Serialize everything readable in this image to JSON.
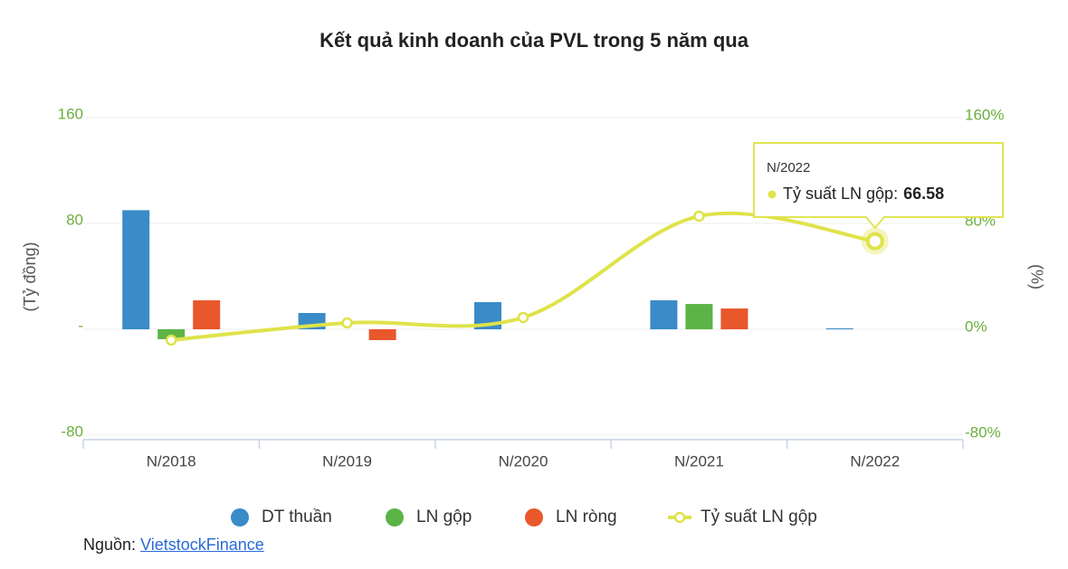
{
  "chart_data": {
    "type": "bar+line",
    "title": "Kết quả kinh doanh của PVL trong 5 năm qua",
    "y_label": "(Tỷ đồng)",
    "y2_label": "(%)",
    "categories": [
      "N/2018",
      "N/2019",
      "N/2020",
      "N/2021",
      "N/2022"
    ],
    "series": [
      {
        "name": "DT thuần",
        "type": "bar",
        "color": "#3a8bc8",
        "values": [
          90,
          12.3,
          20.5,
          21.9,
          0.7
        ]
      },
      {
        "name": "LN gộp",
        "type": "bar",
        "color": "#5cb446",
        "values": [
          -7.5,
          0,
          0,
          19.1,
          0
        ]
      },
      {
        "name": "LN ròng",
        "type": "bar",
        "color": "#e8582b",
        "values": [
          21.9,
          -8.2,
          0,
          15.7,
          0
        ]
      },
      {
        "name": "Tỷ suất LN gộp",
        "type": "line",
        "axis": "y2",
        "color": "#dfe34a",
        "values": [
          -8.2,
          4.8,
          8.9,
          85.5,
          66.58
        ]
      }
    ],
    "ylim": [
      -80,
      160
    ],
    "yticks": [
      -80,
      {
        "value": 0,
        "label": "-"
      },
      80,
      160
    ],
    "y2lim": [
      -80,
      160
    ],
    "y2ticks": [
      {
        "value": -80,
        "label": "-80%"
      },
      {
        "value": 0,
        "label": "0%"
      },
      {
        "value": 80,
        "label": "80%"
      },
      {
        "value": 160,
        "label": "160%"
      }
    ],
    "grid": true,
    "legend": "bottom",
    "tooltip": {
      "label": "Tỷ suất LN gộp:"
    }
  },
  "source": {
    "label": "Nguồn:",
    "link": "VietstockFinance"
  }
}
